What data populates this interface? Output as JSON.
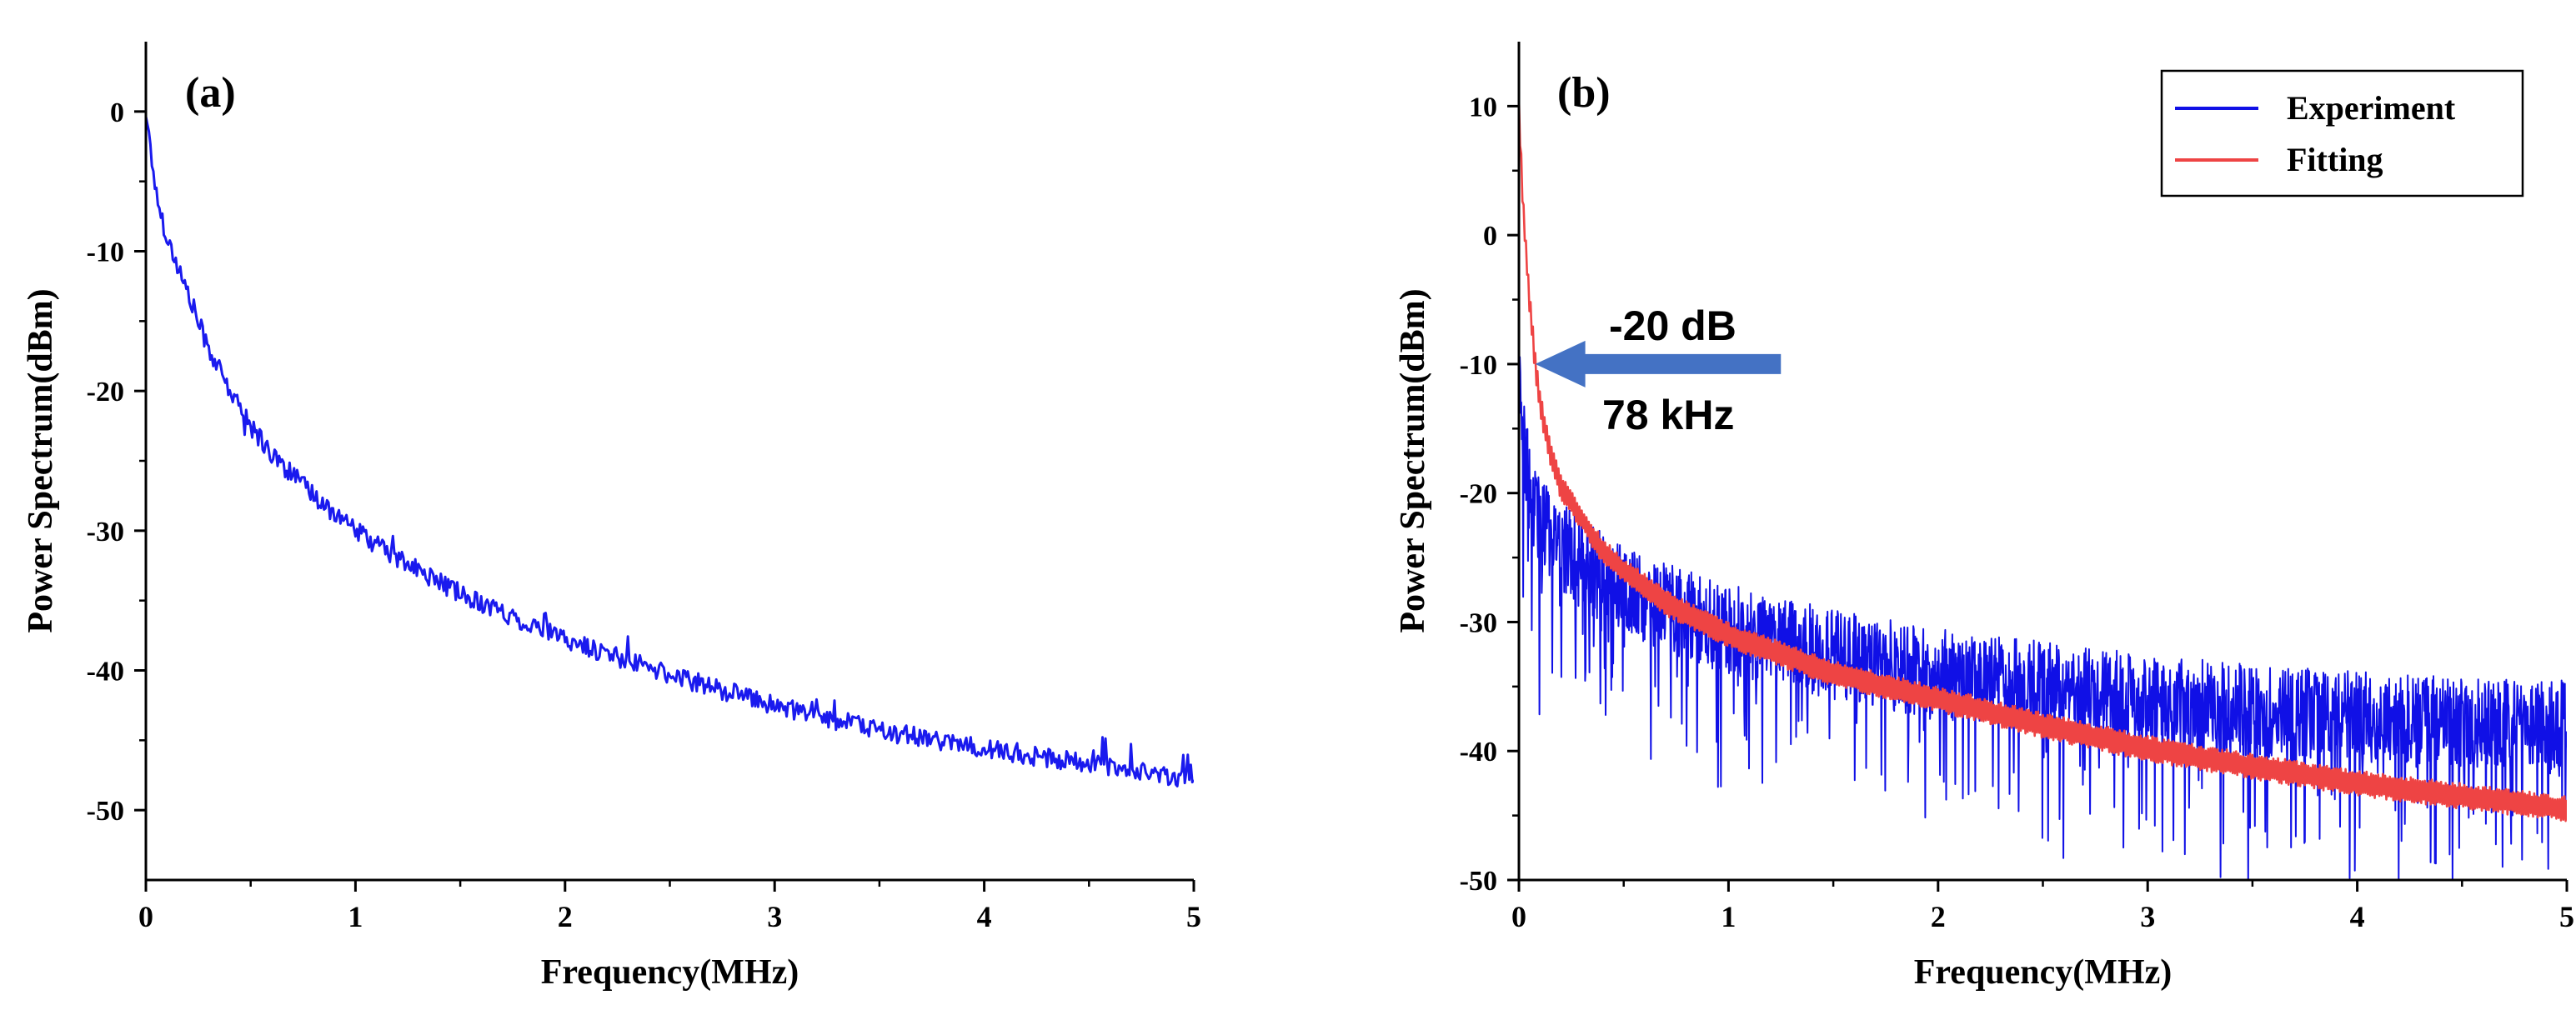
{
  "chart_data": [
    {
      "type": "line",
      "panel_label": "(a)",
      "title": "",
      "xlabel": "Frequency(MHz)",
      "ylabel": "Power Spectrum(dBm)",
      "xlim": [
        0,
        5
      ],
      "ylim": [
        -55,
        5
      ],
      "xticks": [
        0,
        1,
        2,
        3,
        4,
        5
      ],
      "xtick_labels": [
        "0",
        "1",
        "2",
        "3",
        "4",
        "5"
      ],
      "yticks": [
        0,
        -10,
        -20,
        -30,
        -40,
        -50
      ],
      "ytick_labels": [
        "0",
        "-10",
        "-20",
        "-30",
        "-40",
        "-50"
      ],
      "grid": false,
      "series": [
        {
          "name": "Spectrum",
          "color": "#1a1aee",
          "x": [
            0.0,
            0.05,
            0.1,
            0.2,
            0.3,
            0.4,
            0.5,
            0.6,
            0.8,
            1.0,
            1.2,
            1.5,
            1.8,
            2.0,
            2.5,
            3.0,
            3.5,
            4.0,
            4.5,
            5.0
          ],
          "y": [
            0,
            -6,
            -9,
            -13,
            -17,
            -20,
            -22.5,
            -24.5,
            -27.5,
            -30,
            -32,
            -34.5,
            -36.5,
            -37.8,
            -40.3,
            -42.5,
            -44.3,
            -45.6,
            -46.7,
            -47.8
          ]
        }
      ]
    },
    {
      "type": "line",
      "panel_label": "(b)",
      "title": "",
      "xlabel": "Frequency(MHz)",
      "ylabel": "Power Spectrum(dBm)",
      "xlim": [
        0,
        5
      ],
      "ylim": [
        -50,
        15
      ],
      "xticks": [
        0,
        1,
        2,
        3,
        4,
        5
      ],
      "xtick_labels": [
        "0",
        "1",
        "2",
        "3",
        "4",
        "5"
      ],
      "yticks": [
        10,
        0,
        -10,
        -20,
        -30,
        -40,
        -50
      ],
      "ytick_labels": [
        "10",
        "0",
        "-10",
        "-20",
        "-30",
        "-40",
        "-50"
      ],
      "grid": false,
      "legend_position": "top-right",
      "series": [
        {
          "name": "Experiment",
          "color": "#1010e6",
          "x": [
            0.0,
            0.02,
            0.05,
            0.1,
            0.2,
            0.3,
            0.5,
            0.8,
            1.0,
            1.5,
            2.0,
            2.5,
            3.0,
            3.5,
            4.0,
            4.5,
            5.0
          ],
          "y": [
            -11,
            -15,
            -20,
            -22,
            -24,
            -25.5,
            -27.5,
            -29.5,
            -30.5,
            -32.5,
            -34,
            -35,
            -36,
            -36.8,
            -37.3,
            -37.8,
            -38
          ]
        },
        {
          "name": "Fitting",
          "color": "#ee4444",
          "x": [
            0.0,
            0.02,
            0.05,
            0.078,
            0.1,
            0.15,
            0.2,
            0.3,
            0.4,
            0.5,
            0.7,
            1.0,
            1.5,
            2.0,
            2.5,
            3.0,
            3.5,
            4.0,
            4.5,
            5.0
          ],
          "y": [
            10,
            2,
            -5,
            -10,
            -13,
            -17,
            -19.5,
            -22,
            -24.5,
            -26,
            -28.5,
            -31,
            -34,
            -36,
            -38,
            -39.8,
            -41.2,
            -42.5,
            -43.5,
            -44.5
          ]
        }
      ],
      "annotations": [
        {
          "text": "-20 dB",
          "x": 0.078,
          "y": -10
        },
        {
          "text": "78 kHz",
          "x": 0.078,
          "y": -10
        }
      ],
      "arrow": {
        "color": "#4472c4",
        "from": [
          1.25,
          -10
        ],
        "to": [
          0.078,
          -10
        ]
      }
    }
  ]
}
